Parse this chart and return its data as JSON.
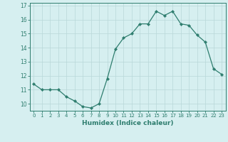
{
  "x": [
    0,
    1,
    2,
    3,
    4,
    5,
    6,
    7,
    8,
    9,
    10,
    11,
    12,
    13,
    14,
    15,
    16,
    17,
    18,
    19,
    20,
    21,
    22,
    23
  ],
  "y": [
    11.4,
    11.0,
    11.0,
    11.0,
    10.5,
    10.2,
    9.8,
    9.7,
    10.0,
    11.8,
    13.9,
    14.7,
    15.0,
    15.7,
    15.7,
    16.6,
    16.3,
    16.6,
    15.7,
    15.6,
    14.9,
    14.4,
    12.5,
    12.1
  ],
  "xlabel": "Humidex (Indice chaleur)",
  "xlim": [
    -0.5,
    23.5
  ],
  "ylim": [
    9.5,
    17.2
  ],
  "yticks": [
    10,
    11,
    12,
    13,
    14,
    15,
    16,
    17
  ],
  "xticks": [
    0,
    1,
    2,
    3,
    4,
    5,
    6,
    7,
    8,
    9,
    10,
    11,
    12,
    13,
    14,
    15,
    16,
    17,
    18,
    19,
    20,
    21,
    22,
    23
  ],
  "line_color": "#2e7d6e",
  "marker": "D",
  "marker_size": 2.2,
  "bg_color": "#d6eff0",
  "grid_color": "#b8d8d9",
  "label_color": "#2e7d6e",
  "tick_color": "#2e7d6e",
  "spine_color": "#2e7d6e"
}
